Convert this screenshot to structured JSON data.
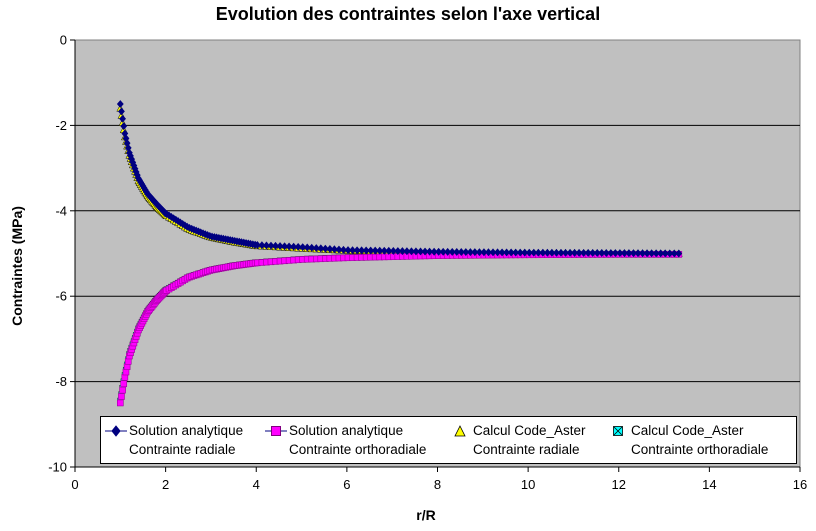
{
  "chart_data": {
    "type": "scatter",
    "title": "Evolution des contraintes selon l'axe vertical",
    "xlabel": "r/R",
    "ylabel": "Contraintes (MPa)",
    "xlim": [
      0,
      16
    ],
    "ylim": [
      -10,
      0
    ],
    "xticks": [
      "0",
      "2",
      "4",
      "6",
      "8",
      "10",
      "12",
      "14",
      "16"
    ],
    "yticks": [
      "0",
      "-2",
      "-4",
      "-6",
      "-8",
      "-10"
    ],
    "grid": "horizontal",
    "legend_position": "bottom",
    "x_range_of_points": [
      1,
      13.4
    ],
    "series": [
      {
        "name": [
          "Solution analytique",
          "Contrainte radiale"
        ],
        "marker": "diamond",
        "color": "#000080",
        "points": [
          [
            1.0,
            -1.5
          ],
          [
            1.1,
            -2.19
          ],
          [
            1.2,
            -2.64
          ],
          [
            1.4,
            -3.24
          ],
          [
            1.6,
            -3.6
          ],
          [
            1.8,
            -3.84
          ],
          [
            2.0,
            -4.06
          ],
          [
            2.5,
            -4.39
          ],
          [
            3.0,
            -4.6
          ],
          [
            3.5,
            -4.7
          ],
          [
            4.0,
            -4.8
          ],
          [
            5.0,
            -4.85
          ],
          [
            6.0,
            -4.92
          ],
          [
            8.0,
            -4.96
          ],
          [
            10.0,
            -4.98
          ],
          [
            12.0,
            -4.99
          ],
          [
            13.4,
            -5.0
          ]
        ]
      },
      {
        "name": [
          "Solution analytique",
          "Contrainte orthoradiale"
        ],
        "marker": "square",
        "color": "#ff00ff",
        "points": [
          [
            1.0,
            -8.5
          ],
          [
            1.1,
            -7.9
          ],
          [
            1.2,
            -7.4
          ],
          [
            1.4,
            -6.79
          ],
          [
            1.6,
            -6.37
          ],
          [
            1.8,
            -6.1
          ],
          [
            2.0,
            -5.88
          ],
          [
            2.5,
            -5.56
          ],
          [
            3.0,
            -5.39
          ],
          [
            3.5,
            -5.29
          ],
          [
            4.0,
            -5.22
          ],
          [
            5.0,
            -5.14
          ],
          [
            6.0,
            -5.1
          ],
          [
            8.0,
            -5.05
          ],
          [
            10.0,
            -5.03
          ],
          [
            12.0,
            -5.02
          ],
          [
            13.4,
            -5.02
          ]
        ]
      },
      {
        "name": [
          "Calcul Code_Aster",
          "Contrainte radiale"
        ],
        "marker": "triangle",
        "color": "#ffff00",
        "points": [
          [
            1.0,
            -1.6
          ],
          [
            1.1,
            -2.27
          ],
          [
            1.2,
            -2.7
          ],
          [
            1.4,
            -3.3
          ],
          [
            1.6,
            -3.65
          ],
          [
            1.8,
            -3.9
          ],
          [
            2.0,
            -4.1
          ],
          [
            2.5,
            -4.43
          ],
          [
            3.0,
            -4.62
          ],
          [
            3.5,
            -4.73
          ],
          [
            4.0,
            -4.82
          ],
          [
            5.0,
            -4.88
          ],
          [
            6.0,
            -4.93
          ],
          [
            8.0,
            -4.97
          ],
          [
            10.0,
            -4.98
          ],
          [
            12.0,
            -4.99
          ],
          [
            13.4,
            -5.0
          ]
        ]
      },
      {
        "name": [
          "Calcul Code_Aster",
          "Contrainte orthoradiale"
        ],
        "marker": "x-square",
        "color": "#00ffff",
        "points": [
          [
            1.0,
            -8.45
          ],
          [
            1.1,
            -7.85
          ],
          [
            1.2,
            -7.36
          ],
          [
            1.4,
            -6.76
          ],
          [
            1.6,
            -6.35
          ],
          [
            1.8,
            -6.08
          ],
          [
            2.0,
            -5.86
          ],
          [
            2.5,
            -5.55
          ],
          [
            3.0,
            -5.38
          ],
          [
            3.5,
            -5.28
          ],
          [
            4.0,
            -5.21
          ],
          [
            5.0,
            -5.13
          ],
          [
            6.0,
            -5.09
          ],
          [
            8.0,
            -5.05
          ],
          [
            10.0,
            -5.03
          ],
          [
            12.0,
            -5.02
          ],
          [
            13.4,
            -5.02
          ]
        ]
      }
    ],
    "plot_background": "#c0c0c0"
  }
}
